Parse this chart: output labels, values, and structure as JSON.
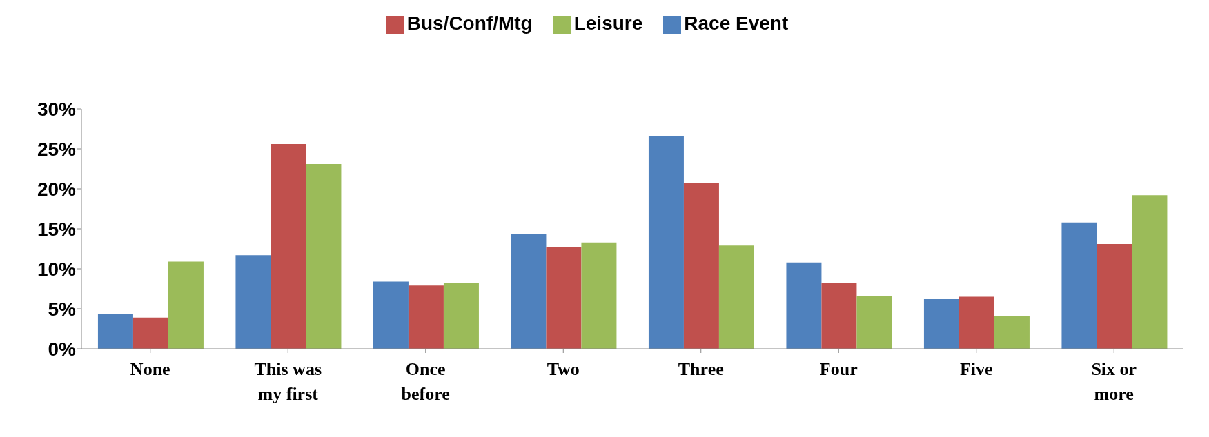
{
  "chart_data": {
    "type": "bar",
    "categories": [
      "None",
      "This was my first",
      "Once before",
      "Two",
      "Three",
      "Four",
      "Five",
      "Six or more"
    ],
    "series": [
      {
        "name": "Race Event",
        "color": "#4f81bd",
        "values": [
          4.4,
          11.7,
          8.4,
          14.4,
          26.6,
          10.8,
          6.2,
          15.8
        ]
      },
      {
        "name": "Bus/Conf/Mtg",
        "color": "#c0504d",
        "values": [
          3.9,
          25.6,
          7.9,
          12.7,
          20.7,
          8.2,
          6.5,
          13.1
        ]
      },
      {
        "name": "Leisure",
        "color": "#9bbb59",
        "values": [
          10.9,
          23.1,
          8.2,
          13.3,
          12.9,
          6.6,
          4.1,
          19.2
        ]
      }
    ],
    "ylim": [
      0,
      30
    ],
    "yticks": [
      {
        "value": 0,
        "label": "0%"
      },
      {
        "value": 5,
        "label": "5%"
      },
      {
        "value": 10,
        "label": "10%"
      },
      {
        "value": 15,
        "label": "15%"
      },
      {
        "value": 20,
        "label": "20%"
      },
      {
        "value": 25,
        "label": "25%"
      },
      {
        "value": 30,
        "label": "30%"
      }
    ],
    "grid": false,
    "legend": "top"
  }
}
